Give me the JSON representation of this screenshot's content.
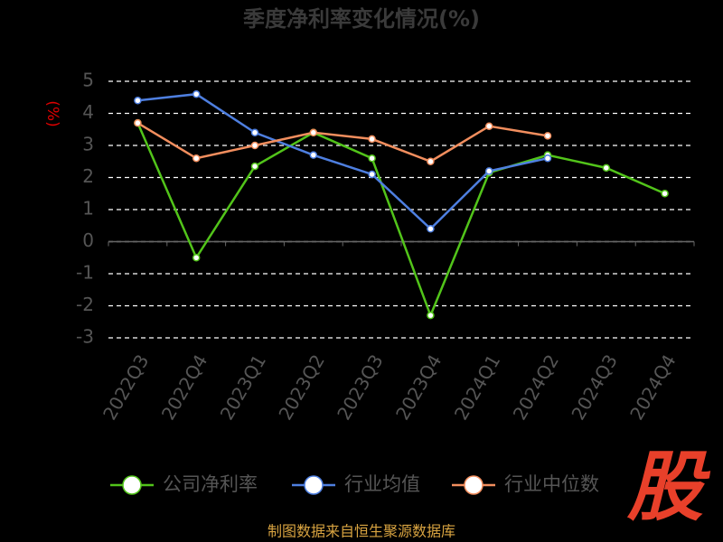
{
  "chart_data": {
    "type": "line",
    "title": "季度净利率变化情况(%)",
    "y_label": "(%)",
    "categories": [
      "2022Q3",
      "2022Q4",
      "2023Q1",
      "2023Q2",
      "2023Q3",
      "2023Q4",
      "2024Q1",
      "2024Q2",
      "2024Q3",
      "2024Q4"
    ],
    "series": [
      {
        "name": "公司净利率",
        "color": "#52c41a",
        "values": [
          3.7,
          -0.5,
          2.35,
          3.4,
          2.6,
          -2.3,
          2.15,
          2.7,
          2.3,
          1.5
        ]
      },
      {
        "name": "行业均值",
        "color": "#4e7fe0",
        "values": [
          4.4,
          4.6,
          3.4,
          2.7,
          2.1,
          0.4,
          2.2,
          2.6,
          null,
          null
        ]
      },
      {
        "name": "行业中位数",
        "color": "#f28e5e",
        "values": [
          3.7,
          2.6,
          3.0,
          3.4,
          3.2,
          2.5,
          3.6,
          3.3,
          null,
          null
        ]
      }
    ],
    "ylim": [
      -3,
      5
    ],
    "yticks": [
      -3,
      -2,
      -1,
      0,
      1,
      2,
      3,
      4,
      5
    ],
    "grid": true,
    "source": "制图数据来自恒生聚源数据库",
    "watermark": "股"
  }
}
